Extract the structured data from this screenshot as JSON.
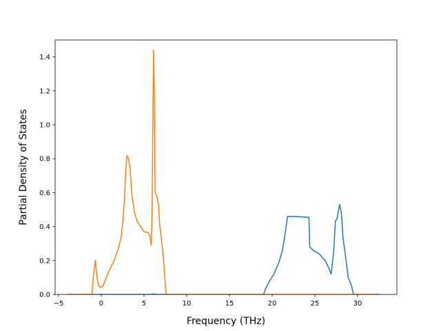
{
  "chart_data": {
    "type": "line",
    "title": "",
    "xlabel": "Frequency (THz)",
    "ylabel": "Partial Density of States",
    "xlim": [
      -5.4,
      34.6
    ],
    "ylim": [
      0.0,
      1.5
    ],
    "xticks": [
      -5,
      0,
      5,
      10,
      15,
      20,
      25,
      30
    ],
    "yticks": [
      0.0,
      0.2,
      0.4,
      0.6,
      0.8,
      1.0,
      1.2,
      1.4
    ],
    "ytick_labels": [
      "0.0",
      "0.2",
      "0.4",
      "0.6",
      "0.8",
      "1.0",
      "1.2",
      "1.4"
    ],
    "grid": false,
    "series": [
      {
        "color": "#1f77b4",
        "points": [
          [
            -4,
            0
          ],
          [
            5.8,
            0
          ],
          [
            6.1,
            0.003
          ],
          [
            6.4,
            0
          ],
          [
            19.0,
            0
          ],
          [
            19.2,
            0.03
          ],
          [
            19.6,
            0.07
          ],
          [
            20.2,
            0.12
          ],
          [
            20.8,
            0.19
          ],
          [
            21.2,
            0.26
          ],
          [
            21.5,
            0.35
          ],
          [
            21.8,
            0.46
          ],
          [
            22.5,
            0.46
          ],
          [
            24.3,
            0.455
          ],
          [
            24.4,
            0.28
          ],
          [
            24.8,
            0.26
          ],
          [
            25.5,
            0.24
          ],
          [
            26.2,
            0.2
          ],
          [
            26.6,
            0.16
          ],
          [
            26.9,
            0.12
          ],
          [
            27.2,
            0.25
          ],
          [
            27.4,
            0.43
          ],
          [
            27.6,
            0.45
          ],
          [
            27.9,
            0.53
          ],
          [
            28.1,
            0.48
          ],
          [
            28.3,
            0.33
          ],
          [
            28.6,
            0.22
          ],
          [
            28.9,
            0.1
          ],
          [
            29.3,
            0.05
          ],
          [
            29.5,
            0
          ],
          [
            32.5,
            0
          ]
        ]
      },
      {
        "color": "#ff7f0e",
        "points": [
          [
            -4,
            0
          ],
          [
            -1.1,
            0
          ],
          [
            -0.9,
            0.12
          ],
          [
            -0.7,
            0.2
          ],
          [
            -0.5,
            0.1
          ],
          [
            -0.3,
            0.05
          ],
          [
            -0.1,
            0.042
          ],
          [
            0.2,
            0.05
          ],
          [
            0.5,
            0.09
          ],
          [
            1.0,
            0.15
          ],
          [
            1.5,
            0.2
          ],
          [
            2.0,
            0.27
          ],
          [
            2.3,
            0.33
          ],
          [
            2.5,
            0.42
          ],
          [
            2.7,
            0.55
          ],
          [
            2.85,
            0.72
          ],
          [
            3.0,
            0.82
          ],
          [
            3.2,
            0.8
          ],
          [
            3.4,
            0.72
          ],
          [
            3.6,
            0.58
          ],
          [
            3.9,
            0.48
          ],
          [
            4.2,
            0.43
          ],
          [
            4.6,
            0.4
          ],
          [
            5.0,
            0.37
          ],
          [
            5.5,
            0.365
          ],
          [
            5.7,
            0.34
          ],
          [
            5.85,
            0.29
          ],
          [
            5.95,
            0.5
          ],
          [
            6.05,
            1.1
          ],
          [
            6.12,
            1.44
          ],
          [
            6.2,
            1.2
          ],
          [
            6.3,
            0.6
          ],
          [
            6.5,
            0.58
          ],
          [
            6.7,
            0.53
          ],
          [
            6.85,
            0.4
          ],
          [
            7.1,
            0.3
          ],
          [
            7.3,
            0.2
          ],
          [
            7.5,
            0.05
          ],
          [
            7.6,
            0
          ],
          [
            32.5,
            0
          ]
        ]
      }
    ]
  }
}
